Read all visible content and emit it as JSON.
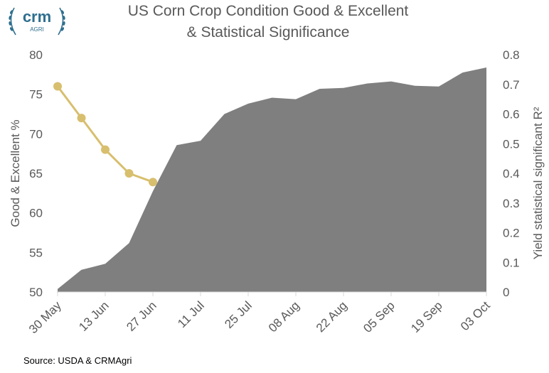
{
  "logo": {
    "text": "crm",
    "subtext": "AGRI",
    "color": "#2f6f8f"
  },
  "source": "Source: USDA & CRMAgri",
  "colors": {
    "area": "#7f7f7f",
    "line": "#d8bf6e",
    "text": "#595959"
  },
  "chart_data": {
    "type": "area",
    "title_lines": [
      "US Corn Crop Condition Good & Excellent",
      "& Statistical Significance"
    ],
    "x_tick_labels": [
      "30 May",
      "13 Jun",
      "27 Jun",
      "11 Jul",
      "25 Jul",
      "08 Aug",
      "22 Aug",
      "05 Sep",
      "19 Sep",
      "03 Oct"
    ],
    "ylabel_left": "Good & Excellent %",
    "ylabel_right": "Yield statistical significant R²",
    "ylim_left": [
      50,
      80
    ],
    "yticks_left": [
      "50",
      "55",
      "60",
      "65",
      "70",
      "75",
      "80"
    ],
    "ylim_right": [
      0,
      0.8
    ],
    "yticks_right": [
      "0",
      "0.1",
      "0.2",
      "0.3",
      "0.4",
      "0.5",
      "0.6",
      "0.7",
      "0.8"
    ],
    "series": [
      {
        "type": "area",
        "axis": "right",
        "x": [
          "30 May",
          "06 Jun",
          "13 Jun",
          "20 Jun",
          "27 Jun",
          "04 Jul",
          "11 Jul",
          "18 Jul",
          "25 Jul",
          "01 Aug",
          "08 Aug",
          "15 Aug",
          "22 Aug",
          "29 Aug",
          "05 Sep",
          "12 Sep",
          "19 Sep",
          "26 Sep",
          "03 Oct"
        ],
        "values": [
          0.01,
          0.075,
          0.095,
          0.165,
          0.34,
          0.495,
          0.51,
          0.6,
          0.635,
          0.655,
          0.65,
          0.685,
          0.688,
          0.703,
          0.71,
          0.695,
          0.693,
          0.74,
          0.757
        ]
      },
      {
        "type": "line",
        "axis": "left",
        "x": [
          "30 May",
          "06 Jun",
          "13 Jun",
          "20 Jun",
          "27 Jun"
        ],
        "values": [
          76,
          72,
          68,
          65,
          63.9
        ]
      }
    ],
    "grid": false,
    "legend": "none"
  }
}
